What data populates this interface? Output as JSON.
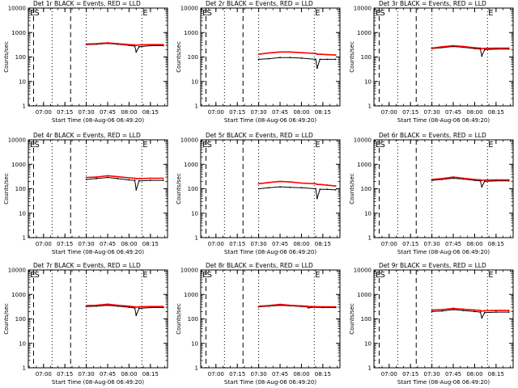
{
  "figure": {
    "xlabel": "Start Time (08-Aug-06 06:49:20)",
    "ylabel": "Counts/sec",
    "x_tick_labels": [
      "07:00",
      "07:15",
      "07:30",
      "07:45",
      "08:00",
      "08:15"
    ],
    "y_tick_labels": [
      "1",
      "10",
      "100",
      "1000",
      "10000"
    ],
    "marker_labels": [
      "E",
      "S",
      "E"
    ],
    "colors": {
      "events": "#000000",
      "lld": "#ff0000",
      "background": "#ffffff"
    }
  },
  "chart_data": [
    {
      "type": "line",
      "title": "Det 1r BLACK = Events, RED = LLD",
      "xlabel": "Start Time (08-Aug-06 06:49:20)",
      "ylabel": "Counts/sec",
      "xlim": [
        "06:49:20",
        "08:27"
      ],
      "ylim": [
        1,
        10000
      ],
      "yscale": "log",
      "x": [
        "07:30",
        "07:37",
        "07:45",
        "07:52",
        "08:00",
        "08:04",
        "08:05",
        "08:07",
        "08:15",
        "08:24"
      ],
      "series": [
        {
          "name": "Events",
          "values": [
            320,
            330,
            360,
            330,
            300,
            280,
            160,
            260,
            290,
            290
          ]
        },
        {
          "name": "LLD",
          "values": [
            340,
            350,
            380,
            350,
            320,
            310,
            300,
            310,
            320,
            320
          ]
        }
      ]
    },
    {
      "type": "line",
      "title": "Det 2r BLACK = Events, RED = LLD",
      "xlabel": "Start Time (08-Aug-06 06:49:20)",
      "ylabel": "Counts/sec",
      "xlim": [
        "06:49:20",
        "08:27"
      ],
      "ylim": [
        1,
        10000
      ],
      "yscale": "log",
      "x": [
        "07:30",
        "07:37",
        "07:45",
        "07:52",
        "08:00",
        "08:10",
        "08:11",
        "08:13",
        "08:18",
        "08:24"
      ],
      "series": [
        {
          "name": "Events",
          "values": [
            80,
            85,
            95,
            95,
            90,
            80,
            35,
            80,
            80,
            80
          ]
        },
        {
          "name": "LLD",
          "values": [
            130,
            145,
            160,
            160,
            150,
            140,
            130,
            130,
            125,
            120
          ]
        }
      ]
    },
    {
      "type": "line",
      "title": "Det 3r BLACK = Events, RED = LLD",
      "xlabel": "Start Time (08-Aug-06 06:49:20)",
      "ylabel": "Counts/sec",
      "xlim": [
        "06:49:20",
        "08:27"
      ],
      "ylim": [
        1,
        10000
      ],
      "yscale": "log",
      "x": [
        "07:30",
        "07:37",
        "07:45",
        "07:52",
        "08:00",
        "08:04",
        "08:05",
        "08:07",
        "08:15",
        "08:24"
      ],
      "series": [
        {
          "name": "Events",
          "values": [
            220,
            240,
            270,
            250,
            220,
            210,
            110,
            200,
            210,
            210
          ]
        },
        {
          "name": "LLD",
          "values": [
            230,
            260,
            290,
            270,
            240,
            230,
            220,
            225,
            230,
            230
          ]
        }
      ]
    },
    {
      "type": "line",
      "title": "Det 4r BLACK = Events, RED = LLD",
      "xlabel": "Start Time (08-Aug-06 06:49:20)",
      "ylabel": "Counts/sec",
      "xlim": [
        "06:49:20",
        "08:27"
      ],
      "ylim": [
        1,
        10000
      ],
      "yscale": "log",
      "x": [
        "07:30",
        "07:37",
        "07:45",
        "07:52",
        "08:00",
        "08:04",
        "08:05",
        "08:07",
        "08:15",
        "08:24"
      ],
      "series": [
        {
          "name": "Events",
          "values": [
            240,
            260,
            290,
            260,
            230,
            220,
            90,
            210,
            220,
            220
          ]
        },
        {
          "name": "LLD",
          "values": [
            290,
            300,
            340,
            310,
            280,
            270,
            260,
            260,
            270,
            270
          ]
        }
      ]
    },
    {
      "type": "line",
      "title": "Det 5r BLACK = Events, RED = LLD",
      "xlabel": "Start Time (08-Aug-06 06:49:20)",
      "ylabel": "Counts/sec",
      "xlim": [
        "06:49:20",
        "08:27"
      ],
      "ylim": [
        1,
        10000
      ],
      "yscale": "log",
      "x": [
        "07:30",
        "07:37",
        "07:45",
        "07:52",
        "08:00",
        "08:10",
        "08:11",
        "08:13",
        "08:18",
        "08:24"
      ],
      "series": [
        {
          "name": "Events",
          "values": [
            100,
            110,
            120,
            115,
            110,
            100,
            40,
            95,
            95,
            90
          ]
        },
        {
          "name": "LLD",
          "values": [
            160,
            180,
            200,
            190,
            170,
            160,
            150,
            150,
            140,
            130
          ]
        }
      ]
    },
    {
      "type": "line",
      "title": "Det 6r BLACK = Events, RED = LLD",
      "xlabel": "Start Time (08-Aug-06 06:49:20)",
      "ylabel": "Counts/sec",
      "xlim": [
        "06:49:20",
        "08:27"
      ],
      "ylim": [
        1,
        10000
      ],
      "yscale": "log",
      "x": [
        "07:30",
        "07:37",
        "07:45",
        "07:52",
        "08:00",
        "08:04",
        "08:05",
        "08:07",
        "08:15",
        "08:24"
      ],
      "series": [
        {
          "name": "Events",
          "values": [
            220,
            240,
            270,
            250,
            220,
            210,
            120,
            200,
            210,
            210
          ]
        },
        {
          "name": "LLD",
          "values": [
            240,
            260,
            300,
            270,
            240,
            230,
            220,
            225,
            230,
            230
          ]
        }
      ]
    },
    {
      "type": "line",
      "title": "Det 7r BLACK = Events, RED = LLD",
      "xlabel": "Start Time (08-Aug-06 06:49:20)",
      "ylabel": "Counts/sec",
      "xlim": [
        "06:49:20",
        "08:27"
      ],
      "ylim": [
        1,
        10000
      ],
      "yscale": "log",
      "x": [
        "07:30",
        "07:37",
        "07:45",
        "07:52",
        "08:00",
        "08:04",
        "08:05",
        "08:07",
        "08:15",
        "08:24"
      ],
      "series": [
        {
          "name": "Events",
          "values": [
            320,
            330,
            360,
            330,
            300,
            280,
            140,
            270,
            290,
            290
          ]
        },
        {
          "name": "LLD",
          "values": [
            350,
            360,
            400,
            360,
            330,
            310,
            300,
            310,
            320,
            320
          ]
        }
      ]
    },
    {
      "type": "line",
      "title": "Det 8r BLACK = Events, RED = LLD",
      "xlabel": "Start Time (08-Aug-06 06:49:20)",
      "ylabel": "Counts/sec",
      "xlim": [
        "06:49:20",
        "08:27"
      ],
      "ylim": [
        1,
        10000
      ],
      "yscale": "log",
      "x": [
        "07:30",
        "07:37",
        "07:45",
        "07:52",
        "08:00",
        "08:04",
        "08:05",
        "08:07",
        "08:15",
        "08:24"
      ],
      "series": [
        {
          "name": "Events",
          "values": [
            310,
            330,
            360,
            340,
            320,
            310,
            280,
            300,
            290,
            290
          ]
        },
        {
          "name": "LLD",
          "values": [
            330,
            350,
            390,
            360,
            340,
            330,
            320,
            320,
            310,
            310
          ]
        }
      ]
    },
    {
      "type": "line",
      "title": "Det 9r BLACK = Events, RED = LLD",
      "xlabel": "Start Time (08-Aug-06 06:49:20)",
      "ylabel": "Counts/sec",
      "xlim": [
        "06:49:20",
        "08:27"
      ],
      "ylim": [
        1,
        10000
      ],
      "yscale": "log",
      "x": [
        "07:30",
        "07:37",
        "07:45",
        "07:52",
        "08:00",
        "08:04",
        "08:05",
        "08:07",
        "08:15",
        "08:24"
      ],
      "series": [
        {
          "name": "Events",
          "values": [
            200,
            210,
            240,
            220,
            200,
            190,
            110,
            180,
            190,
            190
          ]
        },
        {
          "name": "LLD",
          "values": [
            230,
            240,
            270,
            250,
            230,
            220,
            210,
            215,
            220,
            220
          ]
        }
      ]
    }
  ]
}
